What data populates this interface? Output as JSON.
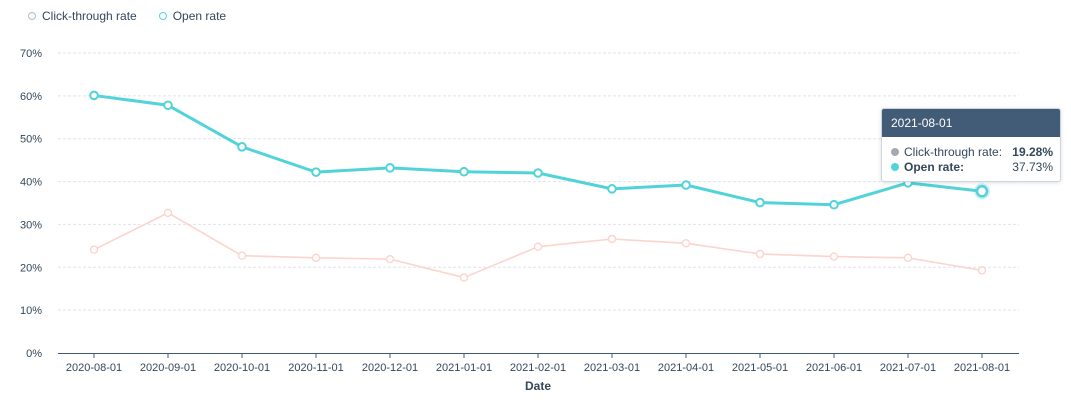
{
  "legend": {
    "items": [
      {
        "label": "Click-through rate",
        "color": "#b0b8c1"
      },
      {
        "label": "Open rate",
        "color": "#51d3d9"
      }
    ]
  },
  "chart_data": {
    "type": "line",
    "title": "",
    "xlabel": "Date",
    "ylabel": "",
    "categories": [
      "2020-08-01",
      "2020-09-01",
      "2020-10-01",
      "2020-11-01",
      "2020-12-01",
      "2021-01-01",
      "2021-02-01",
      "2021-03-01",
      "2021-04-01",
      "2021-05-01",
      "2021-06-01",
      "2021-07-01",
      "2021-08-01"
    ],
    "y_ticks": [
      "0%",
      "10%",
      "20%",
      "30%",
      "40%",
      "50%",
      "60%",
      "70%"
    ],
    "ylim": [
      0,
      70
    ],
    "grid": true,
    "legend_position": "top-left",
    "series": [
      {
        "name": "Click-through rate",
        "color": "#fcd4cc",
        "values": [
          24.1,
          32.7,
          22.7,
          22.2,
          21.9,
          17.6,
          24.8,
          26.6,
          25.6,
          23.1,
          22.5,
          22.2,
          19.28
        ]
      },
      {
        "name": "Open rate",
        "color": "#51d3d9",
        "values": [
          60.1,
          57.8,
          48.1,
          42.2,
          43.2,
          42.3,
          42.0,
          38.3,
          39.2,
          35.1,
          34.6,
          39.7,
          37.73
        ]
      }
    ]
  },
  "tooltip": {
    "date": "2021-08-01",
    "rows": [
      {
        "label": "Click-through rate:",
        "value": "19.28%",
        "color": "#a5aab0"
      },
      {
        "label": "Open rate:",
        "value": "37.73%",
        "color": "#51d3d9"
      }
    ]
  }
}
